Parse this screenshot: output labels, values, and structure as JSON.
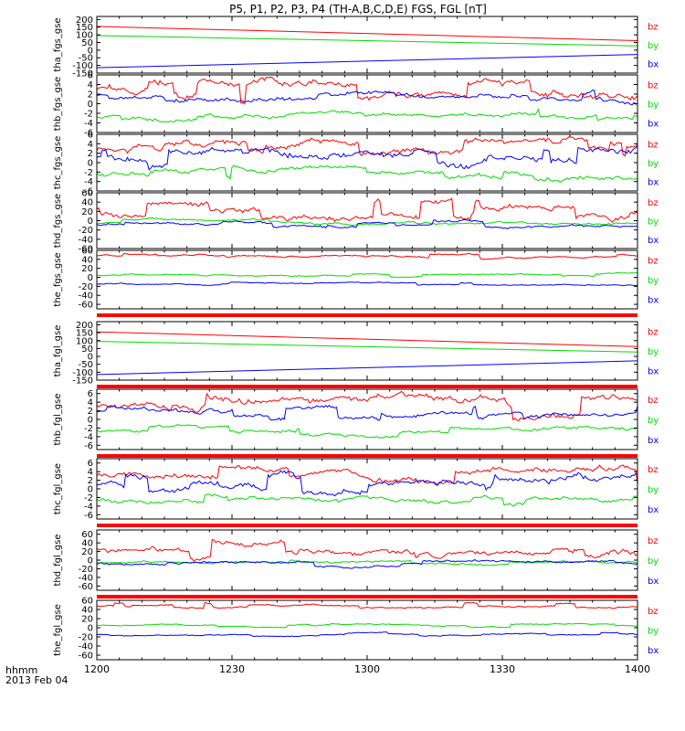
{
  "title": "P5, P1, P2, P3, P4 (TH-A,B,C,D,E) FGS, FGL [nT]",
  "footer": {
    "hhmm_label": "hhmm",
    "date_label": "2013 Feb 04"
  },
  "colors": {
    "bz": "#ff0000",
    "by": "#00dd00",
    "bx": "#0000ff",
    "axes": "#000000",
    "separator": "#ff0000"
  },
  "legend_labels": [
    "bz",
    "by",
    "bx"
  ],
  "chart_data": {
    "type": "line",
    "x_tick_labels": [
      "1200",
      "1230",
      "1300",
      "1330",
      "1400"
    ],
    "x_tick_values_min": [
      0,
      30,
      60,
      90,
      120
    ],
    "xlim_min": [
      0,
      120
    ],
    "panels": [
      {
        "ylabel": "tha_fgs_gse",
        "ylim": [
          -150,
          220
        ],
        "yticks": [
          -150,
          -100,
          -50,
          0,
          50,
          100,
          150,
          200
        ],
        "separator_after": false,
        "mode": "linear",
        "series": [
          {
            "name": "bz",
            "start": 155,
            "end": 62
          },
          {
            "name": "by",
            "start": 95,
            "end": 28
          },
          {
            "name": "bx",
            "start": -115,
            "end": -28
          }
        ]
      },
      {
        "ylabel": "thb_fgs_gse",
        "ylim": [
          -6,
          6
        ],
        "yticks": [
          -6,
          -4,
          -2,
          0,
          2,
          4,
          6
        ],
        "separator_after": false,
        "mode": "noisy",
        "seed": 11,
        "series": [
          {
            "name": "bz",
            "level": 3.0,
            "amp": 2.5
          },
          {
            "name": "by",
            "level": -2.5,
            "amp": 1.2
          },
          {
            "name": "bx",
            "level": 1.5,
            "amp": 1.5
          }
        ]
      },
      {
        "ylabel": "thc_fgs_gse",
        "ylim": [
          -6,
          6
        ],
        "yticks": [
          -6,
          -4,
          -2,
          0,
          2,
          4,
          6
        ],
        "separator_after": false,
        "mode": "noisy",
        "seed": 23,
        "series": [
          {
            "name": "bz",
            "level": 3.0,
            "amp": 2.0
          },
          {
            "name": "by",
            "level": -2.5,
            "amp": 1.5
          },
          {
            "name": "bx",
            "level": 1.0,
            "amp": 2.5
          }
        ]
      },
      {
        "ylabel": "thd_fgs_gse",
        "ylim": [
          -60,
          60
        ],
        "yticks": [
          -60,
          -40,
          -20,
          0,
          20,
          40,
          60
        ],
        "separator_after": false,
        "mode": "noisy",
        "seed": 37,
        "series": [
          {
            "name": "bz",
            "level": 25,
            "amp": 20
          },
          {
            "name": "by",
            "level": -5,
            "amp": 8
          },
          {
            "name": "bx",
            "level": -10,
            "amp": 8
          }
        ]
      },
      {
        "ylabel": "the_fgs_gse",
        "ylim": [
          -70,
          60
        ],
        "yticks": [
          -60,
          -40,
          -20,
          0,
          20,
          40,
          60
        ],
        "separator_after": true,
        "mode": "noisy",
        "seed": 41,
        "series": [
          {
            "name": "bz",
            "level": 48,
            "amp": 6
          },
          {
            "name": "by",
            "level": 5,
            "amp": 4
          },
          {
            "name": "bx",
            "level": -15,
            "amp": 4
          }
        ]
      },
      {
        "ylabel": "tha_fgl_gse",
        "ylim": [
          -150,
          220
        ],
        "yticks": [
          -150,
          -100,
          -50,
          0,
          50,
          100,
          150,
          200
        ],
        "separator_after": true,
        "mode": "linear",
        "series": [
          {
            "name": "bz",
            "start": 155,
            "end": 62
          },
          {
            "name": "by",
            "start": 95,
            "end": 28
          },
          {
            "name": "bx",
            "start": -115,
            "end": -28
          }
        ]
      },
      {
        "ylabel": "thb_fgl_gse",
        "ylim": [
          -7,
          7
        ],
        "yticks": [
          -6,
          -4,
          -2,
          0,
          2,
          4,
          6
        ],
        "separator_after": true,
        "mode": "noisy",
        "seed": 53,
        "series": [
          {
            "name": "bz",
            "level": 3.0,
            "amp": 2.5
          },
          {
            "name": "by",
            "level": -2.5,
            "amp": 1.2
          },
          {
            "name": "bx",
            "level": 1.5,
            "amp": 1.5
          }
        ]
      },
      {
        "ylabel": "thc_fgl_gse",
        "ylim": [
          -7,
          7
        ],
        "yticks": [
          -6,
          -4,
          -2,
          0,
          2,
          4,
          6
        ],
        "separator_after": true,
        "mode": "noisy",
        "seed": 67,
        "series": [
          {
            "name": "bz",
            "level": 3.0,
            "amp": 2.0
          },
          {
            "name": "by",
            "level": -2.5,
            "amp": 1.5
          },
          {
            "name": "bx",
            "level": 1.0,
            "amp": 2.5
          }
        ]
      },
      {
        "ylabel": "thd_fgl_gse",
        "ylim": [
          -70,
          70
        ],
        "yticks": [
          -60,
          -40,
          -20,
          0,
          20,
          40,
          60
        ],
        "separator_after": true,
        "mode": "noisy",
        "seed": 79,
        "series": [
          {
            "name": "bz",
            "level": 25,
            "amp": 20
          },
          {
            "name": "by",
            "level": -5,
            "amp": 8
          },
          {
            "name": "bx",
            "level": -10,
            "amp": 8
          }
        ]
      },
      {
        "ylabel": "the_fgl_gse",
        "ylim": [
          -70,
          60
        ],
        "yticks": [
          -60,
          -40,
          -20,
          0,
          20,
          40,
          60
        ],
        "separator_after": false,
        "mode": "noisy",
        "seed": 97,
        "series": [
          {
            "name": "bz",
            "level": 48,
            "amp": 6
          },
          {
            "name": "by",
            "level": 5,
            "amp": 4
          },
          {
            "name": "bx",
            "level": -15,
            "amp": 4
          }
        ]
      }
    ]
  }
}
